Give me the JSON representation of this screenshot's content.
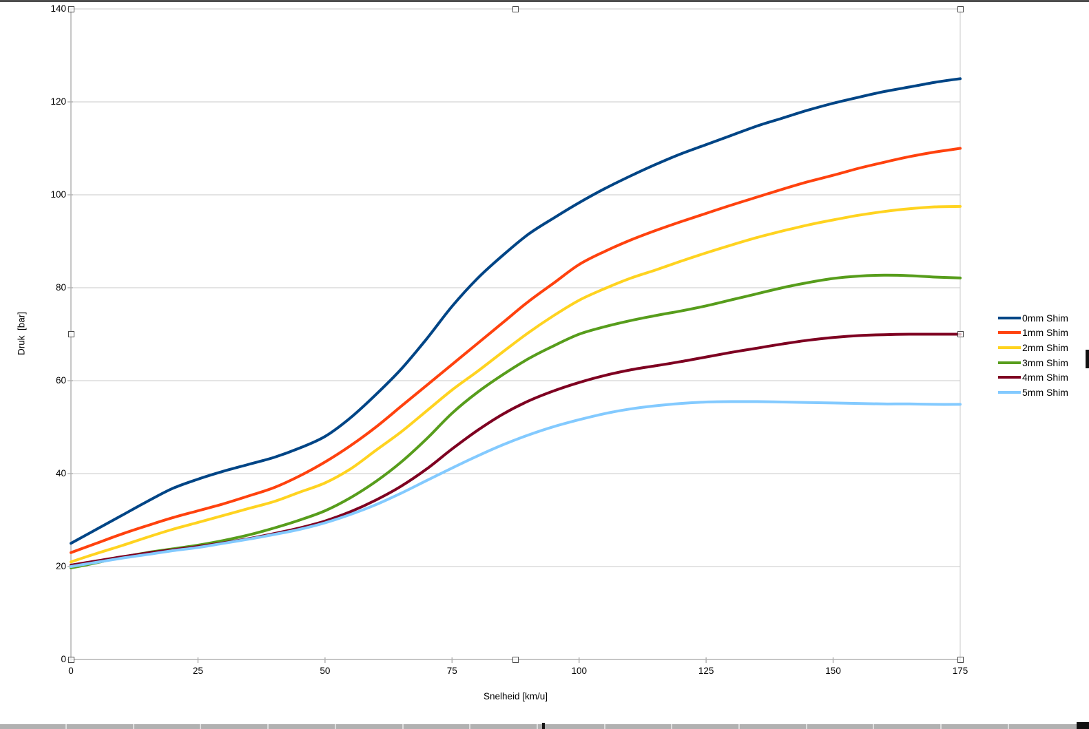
{
  "chart_data": {
    "type": "line",
    "title": "",
    "xlabel": "Snelheid [km/u]",
    "ylabel": "Druk  [bar]",
    "xlim": [
      0,
      175
    ],
    "ylim": [
      0,
      140
    ],
    "x_ticks": [
      0,
      25,
      50,
      75,
      100,
      125,
      150,
      175
    ],
    "y_ticks": [
      0,
      20,
      40,
      60,
      80,
      100,
      120,
      140
    ],
    "grid": "horizontal-only",
    "legend_position": "right",
    "line_width": 4,
    "chart_selected": true,
    "x": [
      0,
      5,
      10,
      15,
      20,
      25,
      30,
      35,
      40,
      45,
      50,
      55,
      60,
      65,
      70,
      75,
      80,
      85,
      90,
      95,
      100,
      105,
      110,
      115,
      120,
      125,
      130,
      135,
      140,
      145,
      150,
      155,
      160,
      165,
      170,
      175
    ],
    "series": [
      {
        "name": "0mm Shim",
        "color": "#004586",
        "values": [
          25.0,
          28.0,
          31.0,
          34.0,
          36.8,
          38.8,
          40.5,
          42.0,
          43.5,
          45.5,
          48.0,
          52.0,
          57.0,
          62.5,
          69.0,
          76.0,
          82.0,
          87.0,
          91.5,
          95.0,
          98.3,
          101.3,
          104.0,
          106.5,
          108.8,
          110.8,
          112.8,
          114.8,
          116.5,
          118.2,
          119.7,
          121.0,
          122.2,
          123.2,
          124.2,
          125.0
        ]
      },
      {
        "name": "1mm Shim",
        "color": "#ff420e",
        "values": [
          23.0,
          25.0,
          27.0,
          28.8,
          30.5,
          32.0,
          33.5,
          35.2,
          37.0,
          39.5,
          42.5,
          46.0,
          50.0,
          54.5,
          59.0,
          63.5,
          68.0,
          72.5,
          77.0,
          81.0,
          85.0,
          87.8,
          90.2,
          92.3,
          94.2,
          96.0,
          97.8,
          99.5,
          101.2,
          102.8,
          104.2,
          105.7,
          107.0,
          108.2,
          109.2,
          110.0
        ]
      },
      {
        "name": "2mm Shim",
        "color": "#ffd320",
        "values": [
          21.0,
          22.8,
          24.5,
          26.3,
          28.0,
          29.5,
          31.0,
          32.5,
          34.0,
          36.0,
          38.0,
          41.0,
          45.0,
          49.0,
          53.5,
          58.0,
          62.0,
          66.2,
          70.3,
          74.0,
          77.3,
          79.8,
          82.0,
          83.8,
          85.7,
          87.5,
          89.2,
          90.8,
          92.2,
          93.5,
          94.6,
          95.6,
          96.4,
          97.0,
          97.4,
          97.5
        ]
      },
      {
        "name": "3mm Shim",
        "color": "#579d1c",
        "values": [
          19.7,
          20.8,
          22.0,
          23.0,
          23.8,
          24.6,
          25.6,
          26.8,
          28.3,
          30.0,
          32.0,
          34.8,
          38.3,
          42.5,
          47.5,
          53.0,
          57.5,
          61.3,
          64.7,
          67.5,
          70.0,
          71.6,
          72.9,
          74.0,
          75.0,
          76.1,
          77.4,
          78.7,
          80.0,
          81.1,
          82.0,
          82.5,
          82.7,
          82.6,
          82.3,
          82.1
        ]
      },
      {
        "name": "4mm Shim",
        "color": "#7e0021",
        "values": [
          20.3,
          21.2,
          22.1,
          22.9,
          23.6,
          24.3,
          25.1,
          26.0,
          27.1,
          28.3,
          29.8,
          31.8,
          34.3,
          37.3,
          41.0,
          45.3,
          49.3,
          52.8,
          55.6,
          57.8,
          59.6,
          61.1,
          62.3,
          63.2,
          64.1,
          65.1,
          66.1,
          67.0,
          67.9,
          68.7,
          69.3,
          69.7,
          69.9,
          70.0,
          70.0,
          70.0
        ]
      },
      {
        "name": "5mm Shim",
        "color": "#83caff",
        "values": [
          20.0,
          20.9,
          21.8,
          22.6,
          23.4,
          24.1,
          25.0,
          25.9,
          26.9,
          28.0,
          29.4,
          31.2,
          33.3,
          35.8,
          38.5,
          41.2,
          43.8,
          46.2,
          48.3,
          50.1,
          51.6,
          52.9,
          53.9,
          54.6,
          55.1,
          55.4,
          55.5,
          55.5,
          55.4,
          55.3,
          55.2,
          55.1,
          55.0,
          55.0,
          54.9,
          54.9
        ]
      }
    ]
  },
  "colors": {
    "grid_line": "#c8c8c8",
    "axis_line": "#b3b3b3",
    "text": "#000000"
  }
}
